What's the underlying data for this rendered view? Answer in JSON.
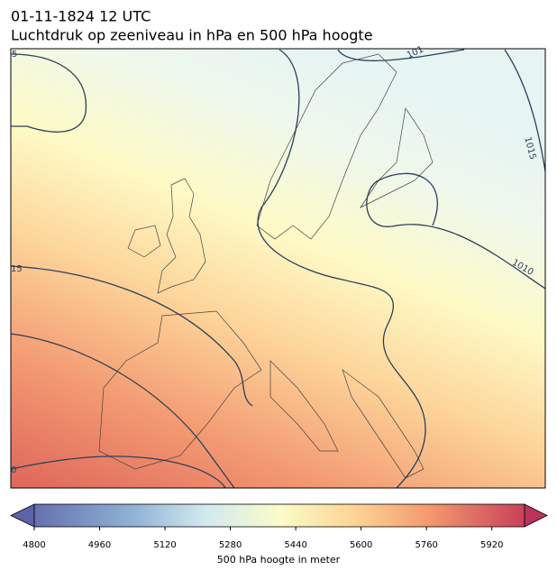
{
  "title": "01-11-1824 12 UTC",
  "subtitle": "Luchtdruk op zeeniveau in hPa en 500 hPa hoogte",
  "colorbar": {
    "label": "500 hPa hoogte in meter",
    "lim": [
      4800,
      6000
    ],
    "ticks": [
      4800,
      4960,
      5120,
      5280,
      5440,
      5600,
      5760,
      5920
    ]
  },
  "contour_labels": [
    "5",
    "101",
    "1015",
    "1010",
    "15",
    "0"
  ]
}
